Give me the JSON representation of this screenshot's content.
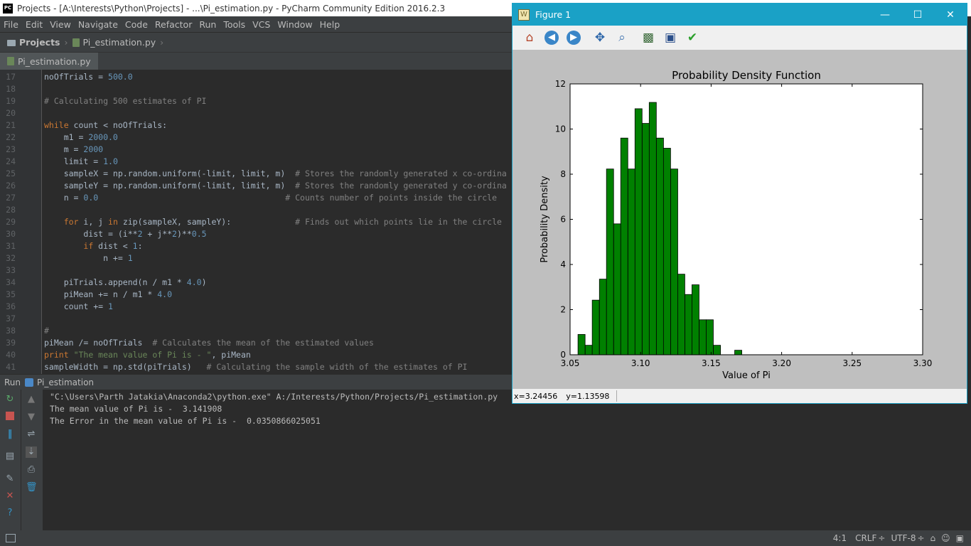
{
  "ide": {
    "title": "Projects - [A:\\Interests\\Python\\Projects] - ...\\Pi_estimation.py - PyCharm Community Edition 2016.2.3",
    "logo_text": "PC",
    "menu": [
      "File",
      "Edit",
      "View",
      "Navigate",
      "Code",
      "Refactor",
      "Run",
      "Tools",
      "VCS",
      "Window",
      "Help"
    ],
    "breadcrumb": {
      "project": "Projects",
      "file": "Pi_estimation.py"
    },
    "tab_label": "Pi_estimation.py"
  },
  "editor": {
    "lines": [
      {
        "n": "17",
        "segs": [
          [
            "",
            "noOfTrials = "
          ],
          [
            "num",
            "500.0"
          ]
        ]
      },
      {
        "n": "18",
        "segs": []
      },
      {
        "n": "19",
        "segs": [
          [
            "cm",
            "# Calculating 500 estimates of PI"
          ]
        ]
      },
      {
        "n": "20",
        "segs": []
      },
      {
        "n": "21",
        "segs": [
          [
            "kw",
            "while"
          ],
          [
            "",
            " count < noOfTrials:"
          ]
        ]
      },
      {
        "n": "22",
        "segs": [
          [
            "",
            "    m1 = "
          ],
          [
            "num",
            "2000.0"
          ]
        ]
      },
      {
        "n": "23",
        "segs": [
          [
            "",
            "    m = "
          ],
          [
            "num",
            "2000"
          ]
        ]
      },
      {
        "n": "24",
        "segs": [
          [
            "",
            "    limit = "
          ],
          [
            "num",
            "1.0"
          ]
        ]
      },
      {
        "n": "25",
        "segs": [
          [
            "",
            "    sampleX = np.random.uniform(-limit, limit, m)  "
          ],
          [
            "cm",
            "# Stores the randomly generated x co-ordina"
          ]
        ]
      },
      {
        "n": "26",
        "segs": [
          [
            "",
            "    sampleY = np.random.uniform(-limit, limit, m)  "
          ],
          [
            "cm",
            "# Stores the randomly generated y co-ordina"
          ]
        ]
      },
      {
        "n": "27",
        "segs": [
          [
            "",
            "    n = "
          ],
          [
            "num",
            "0.0"
          ],
          [
            "",
            "                                      "
          ],
          [
            "cm",
            "# Counts number of points inside the circle"
          ]
        ]
      },
      {
        "n": "28",
        "segs": []
      },
      {
        "n": "29",
        "segs": [
          [
            "",
            "    "
          ],
          [
            "kw",
            "for"
          ],
          [
            "",
            " i, j "
          ],
          [
            "kw",
            "in"
          ],
          [
            "",
            " zip(sampleX, sampleY):             "
          ],
          [
            "cm",
            "# Finds out which points lie in the circle"
          ]
        ]
      },
      {
        "n": "30",
        "segs": [
          [
            "",
            "        dist = (i**"
          ],
          [
            "num",
            "2"
          ],
          [
            "",
            " + j**"
          ],
          [
            "num",
            "2"
          ],
          [
            "",
            ")**"
          ],
          [
            "num",
            "0.5"
          ]
        ]
      },
      {
        "n": "31",
        "segs": [
          [
            "",
            "        "
          ],
          [
            "kw",
            "if"
          ],
          [
            "",
            " dist < "
          ],
          [
            "num",
            "1"
          ],
          [
            "",
            ":"
          ]
        ]
      },
      {
        "n": "32",
        "segs": [
          [
            "",
            "            n += "
          ],
          [
            "num",
            "1"
          ]
        ]
      },
      {
        "n": "33",
        "segs": []
      },
      {
        "n": "34",
        "segs": [
          [
            "",
            "    piTrials.append(n / m1 * "
          ],
          [
            "num",
            "4.0"
          ],
          [
            "",
            ")"
          ]
        ]
      },
      {
        "n": "35",
        "segs": [
          [
            "",
            "    piMean += n / m1 * "
          ],
          [
            "num",
            "4.0"
          ]
        ]
      },
      {
        "n": "36",
        "segs": [
          [
            "",
            "    count += "
          ],
          [
            "num",
            "1"
          ]
        ]
      },
      {
        "n": "37",
        "segs": []
      },
      {
        "n": "38",
        "segs": [
          [
            "cm",
            "#"
          ]
        ]
      },
      {
        "n": "39",
        "segs": [
          [
            "",
            "piMean /= noOfTrials  "
          ],
          [
            "cm",
            "# Calculates the mean of the estimated values"
          ]
        ]
      },
      {
        "n": "40",
        "segs": [
          [
            "kw",
            "print"
          ],
          [
            "",
            " "
          ],
          [
            "str",
            "\"The mean value of Pi is - \""
          ],
          [
            "",
            ", piMean"
          ]
        ]
      },
      {
        "n": "41",
        "segs": [
          [
            "",
            "sampleWidth = np.std(piTrials)   "
          ],
          [
            "cm",
            "# Calculating the sample width of the estimates of PI"
          ]
        ]
      }
    ]
  },
  "run": {
    "label": "Run",
    "config": "Pi_estimation",
    "output": [
      "\"C:\\Users\\Parth Jatakia\\Anaconda2\\python.exe\" A:/Interests/Python/Projects/Pi_estimation.py",
      "The mean value of Pi is -  3.141908",
      "The Error in the mean value of Pi is -  0.0350866025051"
    ]
  },
  "status": {
    "position": "4:1",
    "line_sep": "CRLF",
    "encoding": "UTF-8"
  },
  "figure": {
    "window_title": "Figure 1",
    "coords": {
      "x": "x=3.24456",
      "y": "y=1.13598"
    },
    "toolbar": [
      "home-icon",
      "back-icon",
      "forward-icon",
      "pan-icon",
      "zoom-icon",
      "subplots-icon",
      "save-icon",
      "check-icon"
    ]
  },
  "chart_data": {
    "type": "bar",
    "title": "Probability Density Function",
    "xlabel": "Value of Pi",
    "ylabel": "Probability Density",
    "xlim": [
      3.05,
      3.3
    ],
    "ylim": [
      0,
      12
    ],
    "xticks": [
      "3.05",
      "3.10",
      "3.15",
      "3.20",
      "3.25",
      "3.30"
    ],
    "yticks": [
      "0",
      "2",
      "4",
      "6",
      "8",
      "10",
      "12"
    ],
    "bar_color": "#008000",
    "bin_width": 0.00505,
    "bins": [
      {
        "x": 3.0556,
        "h": 0.9
      },
      {
        "x": 3.0607,
        "h": 0.42
      },
      {
        "x": 3.0657,
        "h": 2.42
      },
      {
        "x": 3.0708,
        "h": 3.35
      },
      {
        "x": 3.0758,
        "h": 8.23
      },
      {
        "x": 3.0809,
        "h": 5.8
      },
      {
        "x": 3.0859,
        "h": 9.6
      },
      {
        "x": 3.091,
        "h": 8.23
      },
      {
        "x": 3.096,
        "h": 10.9
      },
      {
        "x": 3.1011,
        "h": 10.25
      },
      {
        "x": 3.1061,
        "h": 11.18
      },
      {
        "x": 3.1112,
        "h": 9.6
      },
      {
        "x": 3.1162,
        "h": 9.15
      },
      {
        "x": 3.1213,
        "h": 8.23
      },
      {
        "x": 3.1263,
        "h": 3.57
      },
      {
        "x": 3.1314,
        "h": 2.67
      },
      {
        "x": 3.1364,
        "h": 3.1
      },
      {
        "x": 3.1415,
        "h": 1.55
      },
      {
        "x": 3.1465,
        "h": 1.55
      },
      {
        "x": 3.1516,
        "h": 0.42
      },
      {
        "x": 3.1566,
        "h": 0
      },
      {
        "x": 3.1617,
        "h": 0
      },
      {
        "x": 3.1667,
        "h": 0.2
      }
    ]
  }
}
